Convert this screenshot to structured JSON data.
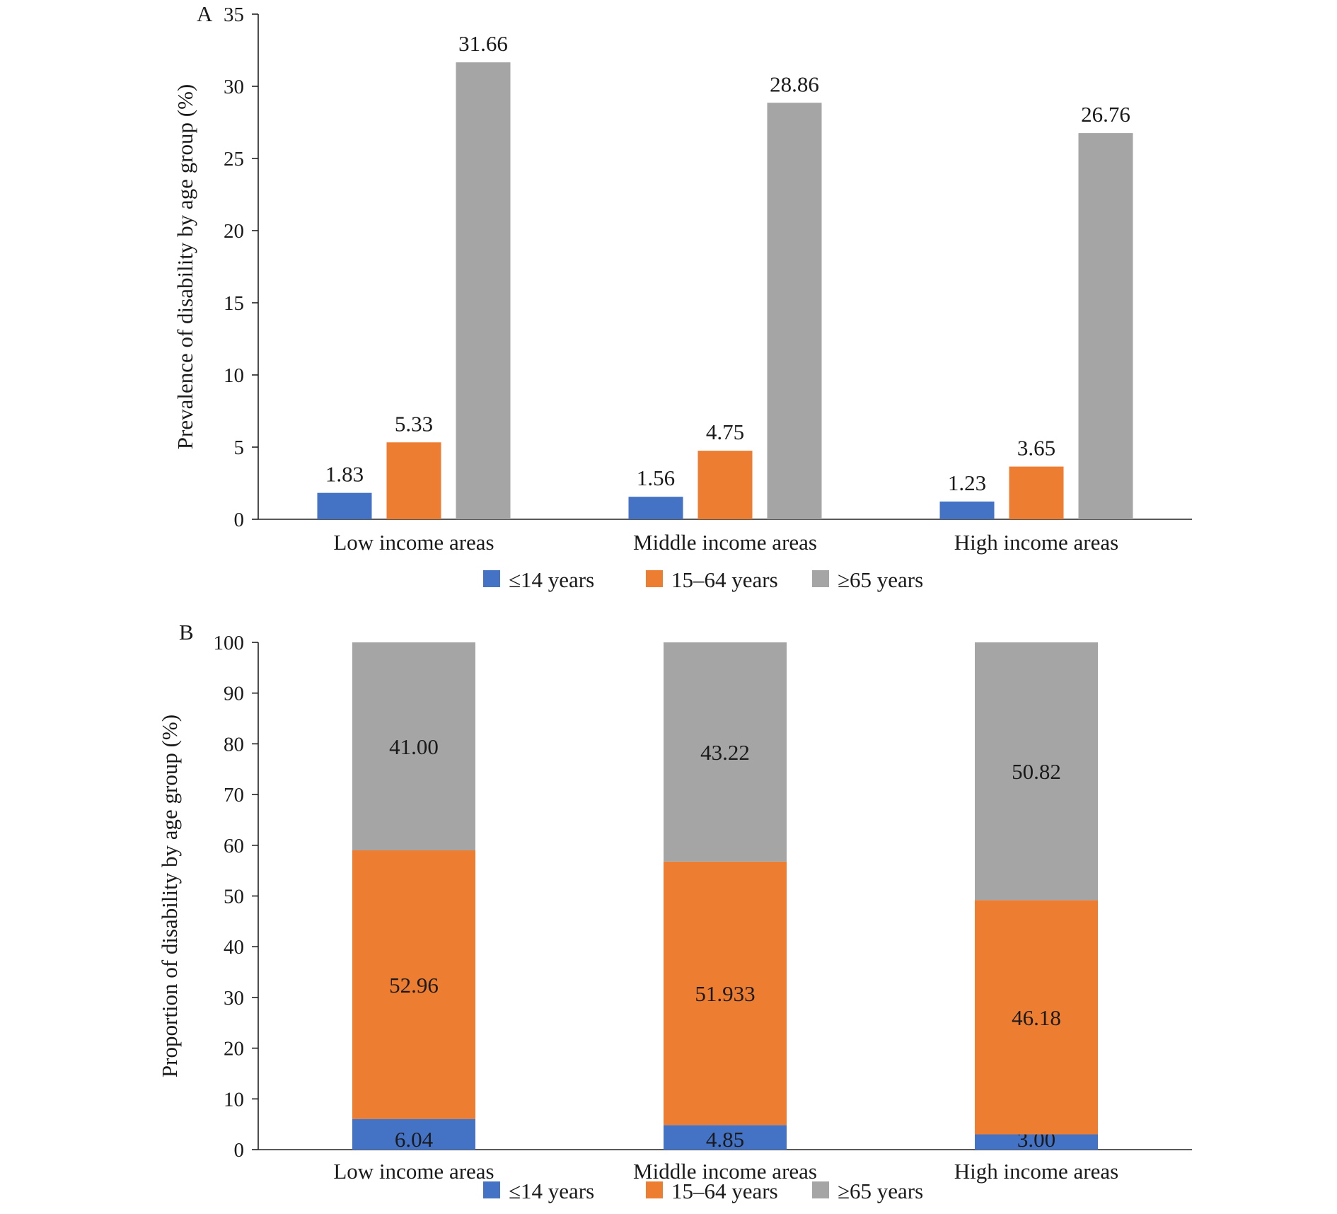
{
  "colors": {
    "le14": "#4472C4",
    "15to64": "#ED7D31",
    "ge65": "#A5A5A5"
  },
  "chart_data": [
    {
      "type": "bar",
      "panel": "A",
      "ylabel": "Prevalence of disability by age group (%)",
      "ylim": [
        0,
        35
      ],
      "yticks": [
        0,
        5,
        10,
        15,
        20,
        25,
        30,
        35
      ],
      "categories": [
        "Low income areas",
        "Middle income areas",
        "High income areas"
      ],
      "series": [
        {
          "name": "≤14 years",
          "color_key": "le14",
          "values": [
            1.83,
            1.56,
            1.23
          ],
          "labels": [
            "1.83",
            "1.56",
            "1.23"
          ]
        },
        {
          "name": "15–64 years",
          "color_key": "15to64",
          "values": [
            5.33,
            4.75,
            3.65
          ],
          "labels": [
            "5.33",
            "4.75",
            "3.65"
          ]
        },
        {
          "name": "≥65 years",
          "color_key": "ge65",
          "values": [
            31.66,
            28.86,
            26.76
          ],
          "labels": [
            "31.66",
            "28.86",
            "26.76"
          ]
        }
      ],
      "legend": "bottom",
      "grid": false
    },
    {
      "type": "bar",
      "stacked": true,
      "panel": "B",
      "ylabel": "Proportion of disability by age group (%)",
      "ylim": [
        0,
        100
      ],
      "yticks": [
        0,
        10,
        20,
        30,
        40,
        50,
        60,
        70,
        80,
        90,
        100
      ],
      "categories": [
        "Low income areas",
        "Middle income areas",
        "High income areas"
      ],
      "series": [
        {
          "name": "≤14 years",
          "color_key": "le14",
          "values": [
            6.04,
            4.85,
            3.0
          ],
          "labels": [
            "6.04",
            "4.85",
            "3.00"
          ]
        },
        {
          "name": "15–64 years",
          "color_key": "15to64",
          "values": [
            52.96,
            51.933,
            46.18
          ],
          "labels": [
            "52.96",
            "51.933",
            "46.18"
          ]
        },
        {
          "name": "≥65 years",
          "color_key": "ge65",
          "values": [
            41.0,
            43.22,
            50.82
          ],
          "labels": [
            "41.00",
            "43.22",
            "50.82"
          ]
        }
      ],
      "legend": "bottom",
      "grid": false
    }
  ]
}
